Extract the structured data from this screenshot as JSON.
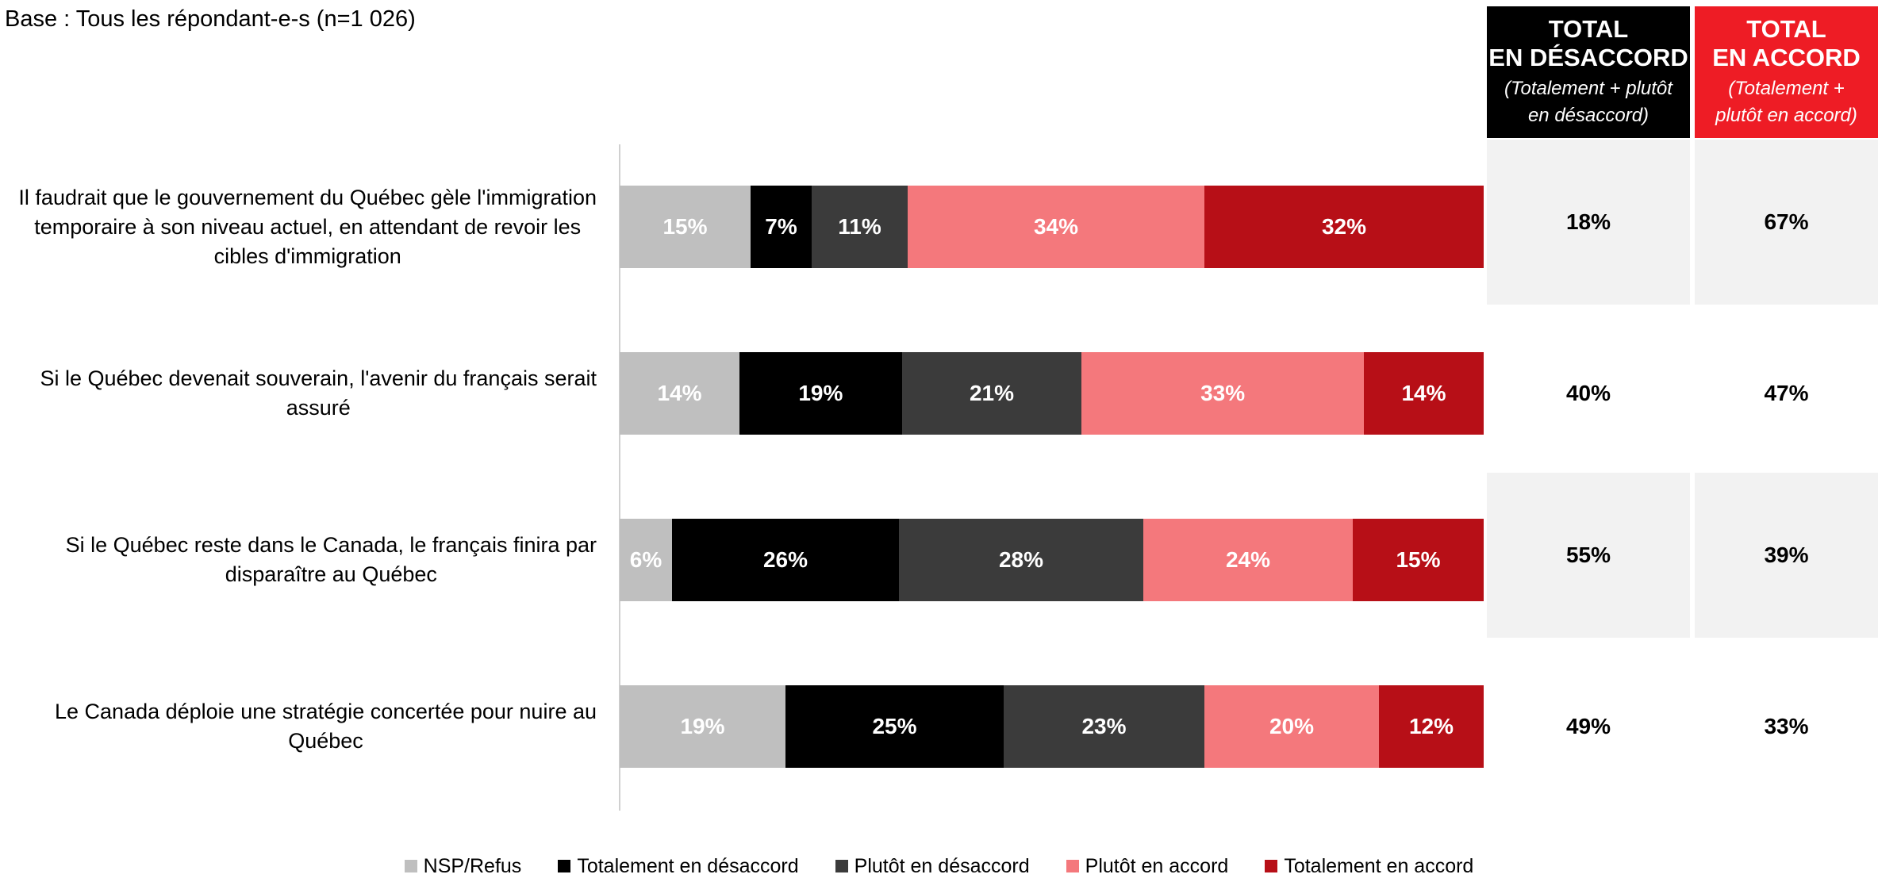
{
  "base_note": "Base : Tous les répondant-e-s (n=1 026)",
  "headers": {
    "disagree": {
      "line1": "TOTAL",
      "line2": "EN DÉSACCORD",
      "sub1": "(Totalement + plutôt",
      "sub2": "en désaccord)"
    },
    "agree": {
      "line1": "TOTAL",
      "line2": "EN ACCORD",
      "sub1": "(Totalement +",
      "sub2": "plutôt en accord)"
    }
  },
  "colors": {
    "nsp": "#bfbfbf",
    "tot_des": "#000000",
    "plut_des": "#3b3b3b",
    "plut_acc": "#f4787c",
    "tot_acc": "#b70f17",
    "hdr_disagree": "#000000",
    "hdr_agree": "#ee1c25",
    "shade": "#f2f2f2"
  },
  "chart_data": {
    "type": "bar",
    "orientation": "horizontal",
    "stacked": true,
    "categories": [
      "Il faudrait que le gouvernement du Québec gèle l'immigration temporaire à son niveau actuel, en attendant de revoir les cibles d'immigration",
      "Si le Québec devenait souverain, l'avenir du français serait assuré",
      "Si le Québec reste dans le Canada, le français finira par disparaître au Québec",
      "Le Canada déploie une stratégie concertée pour nuire au Québec"
    ],
    "category_lines": [
      [
        "Il faudrait que le gouvernement du Québec gèle l'immigration",
        "temporaire à son niveau actuel, en attendant de revoir les",
        "cibles d'immigration"
      ],
      [
        "Si le Québec devenait souverain, l'avenir du français serait",
        "assuré"
      ],
      [
        "Si le Québec reste dans le Canada, le français finira par",
        "disparaître au Québec"
      ],
      [
        "Le Canada déploie une stratégie concertée pour nuire au",
        "Québec"
      ]
    ],
    "series": [
      {
        "name": "NSP/Refus",
        "values": [
          15,
          14,
          6,
          19
        ],
        "labels": [
          "15%",
          "14%",
          "6%",
          "19%"
        ]
      },
      {
        "name": "Totalement en désaccord",
        "values": [
          7,
          19,
          26,
          25
        ],
        "labels": [
          "7%",
          "19%",
          "26%",
          "25%"
        ]
      },
      {
        "name": "Plutôt en désaccord",
        "values": [
          11,
          21,
          28,
          23
        ],
        "labels": [
          "11%",
          "21%",
          "28%",
          "23%"
        ]
      },
      {
        "name": "Plutôt en accord",
        "values": [
          34,
          33,
          24,
          20
        ],
        "labels": [
          "34%",
          "33%",
          "24%",
          "20%"
        ]
      },
      {
        "name": "Totalement en accord",
        "values": [
          32,
          14,
          15,
          12
        ],
        "labels": [
          "32%",
          "14%",
          "15%",
          "12%"
        ]
      }
    ],
    "totals_disagree": [
      "18%",
      "40%",
      "55%",
      "49%"
    ],
    "totals_agree": [
      "67%",
      "47%",
      "39%",
      "33%"
    ],
    "legend_position": "bottom",
    "grid": false
  }
}
